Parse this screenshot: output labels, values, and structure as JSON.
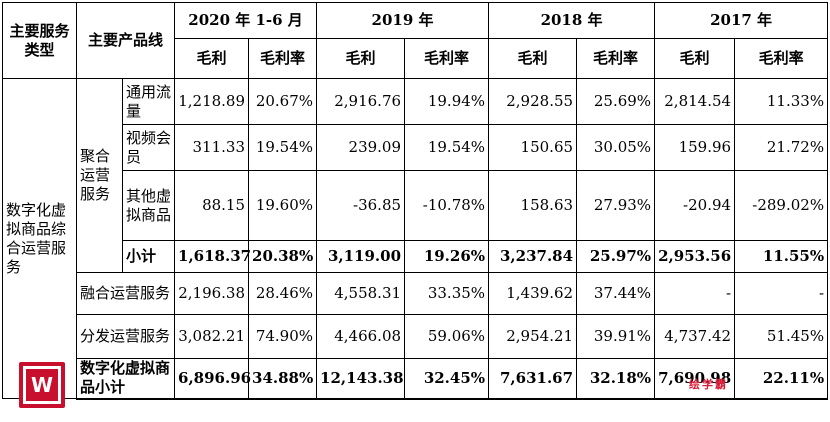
{
  "header": {
    "col_service_type": "主要服务类型",
    "col_product_line": "主要产品线",
    "periods": [
      "2020 年 1-6 月",
      "2019 年",
      "2018 年",
      "2017 年"
    ],
    "gross_profit": "毛利",
    "gross_margin": "毛利率"
  },
  "service_type": "数字化虚拟商品综合运营服务",
  "aggregate_service": "聚合运营服务",
  "rows": [
    {
      "label": "通用流量",
      "values": [
        "1,218.89",
        "20.67%",
        "2,916.76",
        "19.94%",
        "2,928.55",
        "25.69%",
        "2,814.54",
        "11.33%"
      ]
    },
    {
      "label": "视频会员",
      "values": [
        "311.33",
        "19.54%",
        "239.09",
        "19.54%",
        "150.65",
        "30.05%",
        "159.96",
        "21.72%"
      ]
    },
    {
      "label": "其他虚拟商品",
      "values": [
        "88.15",
        "19.60%",
        "-36.85",
        "-10.78%",
        "158.63",
        "27.93%",
        "-20.94",
        "-289.02%"
      ]
    }
  ],
  "subtotal": {
    "label": "小计",
    "values": [
      "1,618.37",
      "20.38%",
      "3,119.00",
      "19.26%",
      "3,237.84",
      "25.97%",
      "2,953.56",
      "11.55%"
    ]
  },
  "fusion": {
    "label": "融合运营服务",
    "values": [
      "2,196.38",
      "28.46%",
      "4,558.31",
      "33.35%",
      "1,439.62",
      "37.44%",
      "-",
      "-"
    ]
  },
  "distribution": {
    "label": "分发运营服务",
    "values": [
      "3,082.21",
      "74.90%",
      "4,466.08",
      "59.06%",
      "2,954.21",
      "39.91%",
      "4,737.42",
      "51.45%"
    ]
  },
  "total": {
    "label": "数字化虚拟商品小计",
    "values": [
      "6,896.96",
      "34.88%",
      "12,143.38",
      "32.45%",
      "7,631.67",
      "32.18%",
      "7,690.98",
      "22.11%"
    ]
  },
  "watermark": {
    "logo_letter": "W",
    "text": "绘学霸"
  },
  "colors": {
    "watermark_red": "#c8102e"
  }
}
